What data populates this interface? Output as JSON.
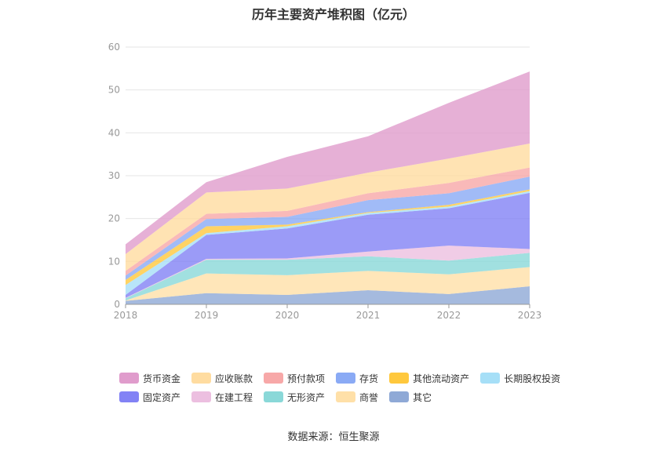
{
  "chart_data": {
    "type": "area",
    "stacked": true,
    "title": "历年主要资产堆积图（亿元）",
    "x": [
      "2018",
      "2019",
      "2020",
      "2021",
      "2022",
      "2023"
    ],
    "ylim": [
      0,
      60
    ],
    "yticks": [
      0,
      10,
      20,
      30,
      40,
      50,
      60
    ],
    "grid": true,
    "legend_position": "bottom",
    "series": [
      {
        "name": "其它",
        "color": "#8fa9d6",
        "values": [
          0.8,
          2.6,
          2.2,
          3.3,
          2.4,
          4.2
        ]
      },
      {
        "name": "商誉",
        "color": "#ffe0a8",
        "values": [
          0.1,
          4.6,
          4.6,
          4.5,
          4.6,
          4.5
        ]
      },
      {
        "name": "无形资产",
        "color": "#8ad8d8",
        "values": [
          0.5,
          3.2,
          3.6,
          3.4,
          3.2,
          3.3
        ]
      },
      {
        "name": "在建工程",
        "color": "#ecbfe0",
        "values": [
          0.1,
          0.2,
          0.3,
          1.1,
          3.5,
          0.9
        ]
      },
      {
        "name": "固定资产",
        "color": "#8282f5",
        "values": [
          0.7,
          5.6,
          7.0,
          8.6,
          8.7,
          13.1
        ]
      },
      {
        "name": "长期股权投资",
        "color": "#a6dff7",
        "values": [
          2.3,
          0.4,
          0.5,
          0.4,
          0.4,
          0.4
        ]
      },
      {
        "name": "其他流动资产",
        "color": "#ffc83d",
        "values": [
          1.2,
          1.6,
          0.4,
          0.2,
          0.4,
          0.4
        ]
      },
      {
        "name": "存货",
        "color": "#8aaaf5",
        "values": [
          1.0,
          1.7,
          1.8,
          2.8,
          2.7,
          3.0
        ]
      },
      {
        "name": "预付款项",
        "color": "#f7a8a8",
        "values": [
          1.1,
          1.2,
          1.4,
          1.6,
          2.4,
          2.1
        ]
      },
      {
        "name": "应收账款",
        "color": "#ffdca0",
        "values": [
          3.9,
          5.0,
          5.2,
          4.8,
          5.7,
          5.6
        ]
      },
      {
        "name": "货币资金",
        "color": "#e09ccc",
        "values": [
          2.3,
          2.4,
          7.4,
          8.5,
          13.0,
          16.8
        ]
      }
    ]
  },
  "legend_order": [
    [
      "货币资金",
      "应收账款",
      "预付款项",
      "存货",
      "其他流动资产",
      "长期股权投资"
    ],
    [
      "固定资产",
      "在建工程",
      "无形资产",
      "商誉",
      "其它"
    ]
  ],
  "source": "数据来源：恒生聚源"
}
